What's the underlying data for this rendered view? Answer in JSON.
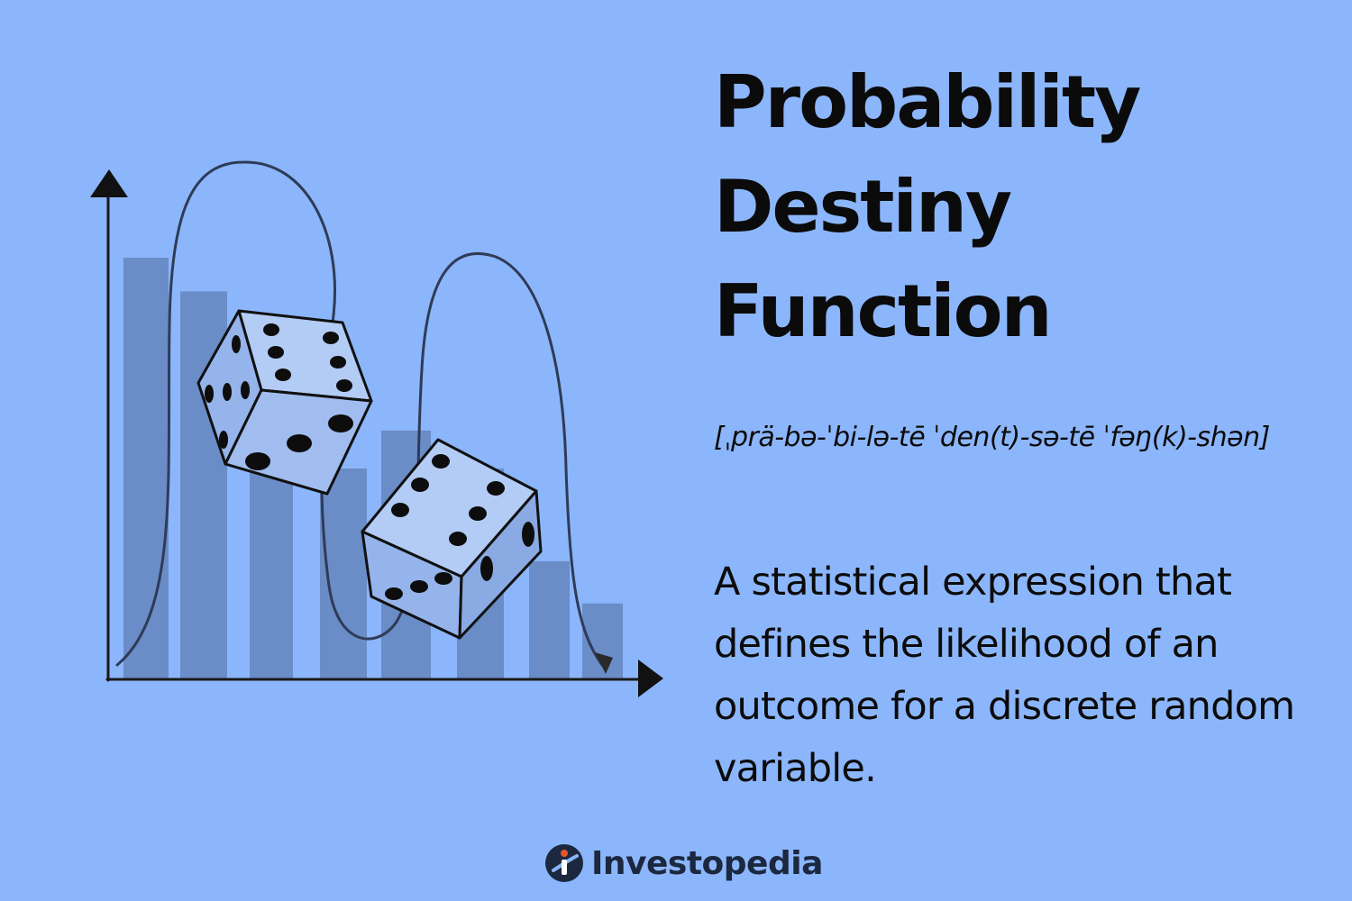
{
  "title_lines": [
    "Probability",
    "Destiny",
    "Function"
  ],
  "pronunciation": "[ˌprä-bə-ˈbi-lə-tē ˈden(t)-sə-tē ˈfəŋ(k)-shən]",
  "definition": "A statistical expression that defines the likelihood of an outcome for a discrete random variable.",
  "brand": {
    "name": "Investopedia",
    "icon": "investopedia-logo-icon"
  },
  "illustration": {
    "icons": [
      "y-axis-arrow-icon",
      "x-axis-arrow-icon",
      "bell-curve-icon",
      "die-icon"
    ],
    "relative_bar_heights": [
      1.0,
      0.92,
      0.6,
      0.5,
      0.59,
      0.5,
      0.28,
      0.18
    ]
  },
  "colors": {
    "background": "#8cb6fb",
    "bars": "#6a8cc7",
    "dice_face": "#a9c5f2",
    "text": "#0b0b0b",
    "brand_accent": "#e8542c"
  }
}
